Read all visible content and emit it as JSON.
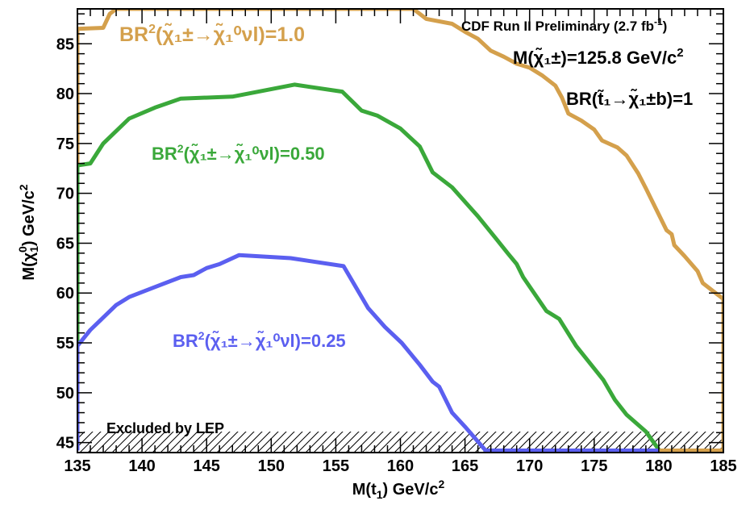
{
  "chart_data": {
    "type": "line",
    "xlabel": "M(t̃₁) GeV/c²",
    "ylabel": "M(χ̃₁⁰) GeV/c²",
    "xlim": [
      135,
      185
    ],
    "ylim": [
      44,
      88.5
    ],
    "x_ticks": [
      "135",
      "140",
      "145",
      "150",
      "155",
      "160",
      "165",
      "170",
      "175",
      "180",
      "185"
    ],
    "y_ticks": [
      "45",
      "50",
      "55",
      "60",
      "65",
      "70",
      "75",
      "80",
      "85"
    ],
    "grid": false,
    "annotations": {
      "experiment": "CDF Run II Preliminary (2.7 fb",
      "experiment_sup": "-1",
      "experiment_end": ")",
      "chargino_mass": "M(χ̃₁±)=125.8 GeV/c",
      "chargino_mass_sup": "2",
      "stop_br": "BR(t̃₁→χ̃₁±b)=1",
      "lep": "Excluded by LEP"
    },
    "series": [
      {
        "name": "BR²(χ̃₁±→χ̃₁⁰νl)=1.0",
        "color": "#d4a04c",
        "points": [
          [
            135,
            44.2
          ],
          [
            135,
            86.5
          ],
          [
            137,
            86.6
          ],
          [
            137.5,
            88
          ],
          [
            138,
            88.5
          ],
          [
            161,
            88.5
          ],
          [
            162,
            87.5
          ],
          [
            164,
            87
          ],
          [
            165,
            86.2
          ],
          [
            166,
            85.5
          ],
          [
            167,
            84.3
          ],
          [
            168,
            83.7
          ],
          [
            169,
            83
          ],
          [
            170,
            82.6
          ],
          [
            171,
            81.8
          ],
          [
            172,
            80.8
          ],
          [
            172.5,
            79.6
          ],
          [
            173,
            78
          ],
          [
            174,
            77.3
          ],
          [
            175,
            76.4
          ],
          [
            175.6,
            75.3
          ],
          [
            176.8,
            74.6
          ],
          [
            177.5,
            73.8
          ],
          [
            178.4,
            72
          ],
          [
            179,
            70.5
          ],
          [
            180.6,
            66.3
          ],
          [
            181,
            65.9
          ],
          [
            181.2,
            64.8
          ],
          [
            182,
            63.7
          ],
          [
            183,
            62.2
          ],
          [
            183.4,
            61
          ],
          [
            185,
            59.4
          ],
          [
            185,
            44.2
          ],
          [
            180,
            44.2
          ]
        ]
      },
      {
        "name": "BR²(χ̃₁±→χ̃₁⁰νl)=0.50",
        "color": "#3aa83a",
        "points": [
          [
            135,
            44.2
          ],
          [
            135,
            72.8
          ],
          [
            136,
            73
          ],
          [
            137,
            75
          ],
          [
            139,
            77.5
          ],
          [
            141,
            78.6
          ],
          [
            143,
            79.5
          ],
          [
            147,
            79.7
          ],
          [
            151.8,
            80.9
          ],
          [
            155.5,
            80.2
          ],
          [
            157,
            78.3
          ],
          [
            158.2,
            77.8
          ],
          [
            160,
            76.5
          ],
          [
            161.5,
            74.7
          ],
          [
            162.5,
            72.1
          ],
          [
            164,
            70.6
          ],
          [
            166,
            67.7
          ],
          [
            167.5,
            65.3
          ],
          [
            168.3,
            64
          ],
          [
            169,
            62.9
          ],
          [
            169.5,
            61.6
          ],
          [
            171.3,
            58.2
          ],
          [
            172.3,
            57.4
          ],
          [
            173.6,
            54.7
          ],
          [
            175.7,
            51.3
          ],
          [
            176.6,
            49.3
          ],
          [
            177.5,
            47.8
          ],
          [
            179,
            46.1
          ],
          [
            180,
            44.3
          ]
        ]
      },
      {
        "name": "BR²(χ̃₁±→χ̃₁⁰νl)=0.25",
        "color": "#5b5ff0",
        "points": [
          [
            135,
            44.2
          ],
          [
            135,
            54.7
          ],
          [
            136,
            56.3
          ],
          [
            138,
            58.8
          ],
          [
            139,
            59.6
          ],
          [
            141,
            60.6
          ],
          [
            143,
            61.6
          ],
          [
            144,
            61.8
          ],
          [
            145,
            62.5
          ],
          [
            146,
            62.9
          ],
          [
            147.5,
            63.8
          ],
          [
            151.5,
            63.5
          ],
          [
            155.6,
            62.7
          ],
          [
            157.5,
            58.5
          ],
          [
            158.8,
            56.6
          ],
          [
            160.1,
            55
          ],
          [
            161.5,
            52.8
          ],
          [
            162.5,
            51.1
          ],
          [
            163,
            50.6
          ],
          [
            163.5,
            49.3
          ],
          [
            164,
            48
          ],
          [
            165,
            46.6
          ],
          [
            166,
            45.1
          ],
          [
            166.6,
            44.2
          ],
          [
            180,
            44.2
          ]
        ]
      }
    ],
    "series_labels": [
      {
        "text": "BR",
        "sup": "2",
        "rest": "(χ̃₁±→χ̃₁⁰νl)=1.0"
      },
      {
        "text": "BR",
        "sup": "2",
        "rest": "(χ̃₁±→χ̃₁⁰νl)=0.50"
      },
      {
        "text": "BR",
        "sup": "2",
        "rest": "(χ̃₁±→χ̃₁⁰νl)=0.25"
      }
    ]
  }
}
